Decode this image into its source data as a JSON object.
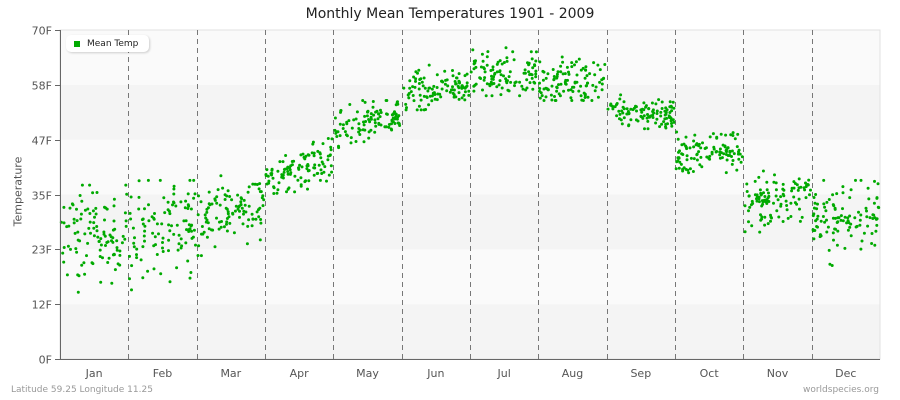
{
  "chart_data": {
    "type": "scatter",
    "title": "Monthly Mean Temperatures 1901 - 2009",
    "xlabel": "",
    "ylabel": "Temperature",
    "ylim": [
      0,
      70
    ],
    "y_ticks": [
      "0F",
      "12F",
      "23F",
      "35F",
      "47F",
      "58F",
      "70F"
    ],
    "y_tick_values": [
      0,
      11.67,
      23.33,
      35,
      46.67,
      58.33,
      70
    ],
    "categories": [
      "Jan",
      "Feb",
      "Mar",
      "Apr",
      "May",
      "Jun",
      "Jul",
      "Aug",
      "Sep",
      "Oct",
      "Nov",
      "Dec"
    ],
    "grid": "alternating horizontal bands, dashed vertical month separators",
    "legend": {
      "position": "top-left",
      "entries": [
        "Mean Temp"
      ]
    },
    "series": [
      {
        "name": "Mean Temp",
        "color": "#00aa00",
        "points_per_month": 109,
        "monthly_summary": [
          {
            "month": "Jan",
            "mean": 26,
            "min": 11,
            "max": 37,
            "start": 25,
            "end": 28
          },
          {
            "month": "Feb",
            "mean": 27,
            "min": 10,
            "max": 38,
            "start": 26,
            "end": 30
          },
          {
            "month": "Mar",
            "mean": 31,
            "min": 22,
            "max": 39,
            "start": 29,
            "end": 34
          },
          {
            "month": "Apr",
            "mean": 40,
            "min": 35,
            "max": 47,
            "start": 38,
            "end": 43
          },
          {
            "month": "May",
            "mean": 50,
            "min": 44,
            "max": 55,
            "start": 48,
            "end": 52
          },
          {
            "month": "Jun",
            "mean": 57,
            "min": 53,
            "max": 64,
            "start": 56,
            "end": 59
          },
          {
            "month": "Jul",
            "mean": 61,
            "min": 56,
            "max": 68,
            "start": 60,
            "end": 61
          },
          {
            "month": "Aug",
            "mean": 59,
            "min": 55,
            "max": 67,
            "start": 59,
            "end": 59
          },
          {
            "month": "Sep",
            "mean": 53,
            "min": 49,
            "max": 58,
            "start": 53,
            "end": 52
          },
          {
            "month": "Oct",
            "mean": 44,
            "min": 38,
            "max": 50,
            "start": 43,
            "end": 45
          },
          {
            "month": "Nov",
            "mean": 34,
            "min": 27,
            "max": 40,
            "start": 33,
            "end": 35
          },
          {
            "month": "Dec",
            "mean": 30,
            "min": 18,
            "max": 38,
            "start": 29,
            "end": 31
          }
        ]
      }
    ]
  },
  "footer": {
    "location": "Latitude 59.25 Longitude 11.25",
    "source": "worldspecies.org"
  },
  "colors": {
    "point": "#00aa00",
    "band_light": "#fafafa",
    "band_dark": "#f4f4f4",
    "axis": "#666666",
    "separator": "#777777"
  }
}
